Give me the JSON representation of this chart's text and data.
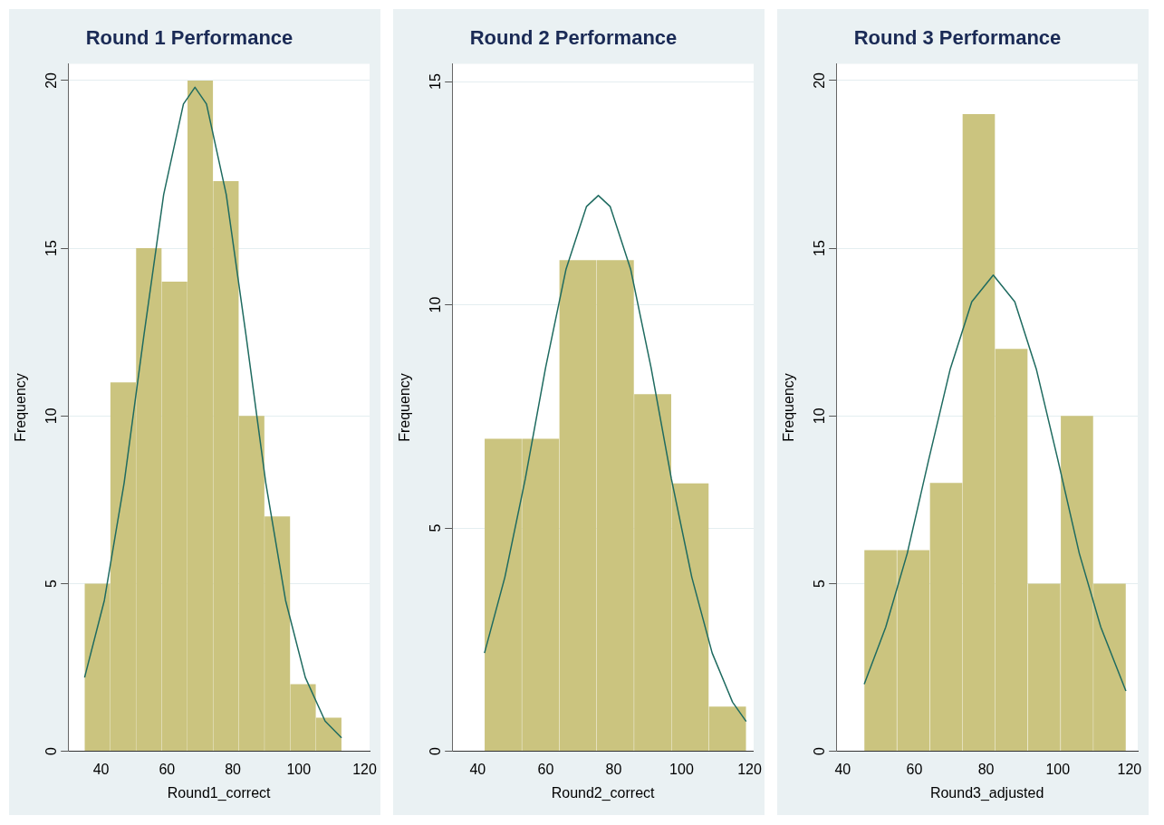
{
  "chart_data": [
    {
      "type": "histogram",
      "title": "Round 1 Performance",
      "xlabel": "Round1_correct",
      "ylabel": "Frequency",
      "bins": [
        35,
        42.8,
        50.6,
        58.4,
        66.2,
        74,
        81.8,
        89.6,
        97.4,
        105.2,
        113
      ],
      "values": [
        5,
        11,
        15,
        14,
        20,
        17,
        10,
        7,
        2,
        1
      ],
      "color": "#cbc47f",
      "series": [
        {
          "type": "line",
          "color": "#1f6b60",
          "x": [
            35,
            41,
            47,
            53,
            59,
            65,
            68.5,
            72,
            78,
            84,
            90,
            96,
            102,
            108,
            113
          ],
          "values": [
            2.2,
            4.5,
            8.0,
            12.4,
            16.6,
            19.3,
            19.8,
            19.3,
            16.6,
            12.4,
            8.0,
            4.5,
            2.2,
            0.9,
            0.4
          ]
        }
      ],
      "xlim": [
        30,
        121.5
      ],
      "xticks": [
        40,
        60,
        80,
        100,
        120
      ],
      "ylim": [
        0,
        20.5
      ],
      "yticks": [
        0,
        5,
        10,
        15,
        20
      ],
      "grid": "y"
    },
    {
      "type": "histogram",
      "title": "Round 2 Performance",
      "xlabel": "Round2_correct",
      "ylabel": "Frequency",
      "bins": [
        42,
        53,
        64,
        75,
        86,
        97,
        108,
        119
      ],
      "values": [
        7,
        7,
        11,
        11,
        8,
        6,
        1
      ],
      "color": "#cbc47f",
      "series": [
        {
          "type": "line",
          "color": "#1f6b60",
          "x": [
            42,
            48,
            54,
            60,
            66,
            72,
            75.5,
            79,
            85,
            91,
            97,
            103,
            109,
            115,
            119
          ],
          "values": [
            2.2,
            3.9,
            6.1,
            8.6,
            10.8,
            12.2,
            12.45,
            12.2,
            10.8,
            8.6,
            6.1,
            3.9,
            2.2,
            1.1,
            0.67
          ]
        }
      ],
      "xlim": [
        32.5,
        121.2
      ],
      "xticks": [
        40,
        60,
        80,
        100,
        120
      ],
      "ylim": [
        0,
        15.4
      ],
      "yticks": [
        0,
        5,
        10,
        15
      ],
      "grid": "y"
    },
    {
      "type": "histogram",
      "title": "Round 3 Performance",
      "xlabel": "Round3_adjusted",
      "ylabel": "Frequency",
      "bins": [
        46,
        55.1,
        64.3,
        73.4,
        82.5,
        91.6,
        100.8,
        109.9,
        119
      ],
      "values": [
        6,
        6,
        8,
        19,
        12,
        5,
        10,
        5
      ],
      "color": "#cbc47f",
      "series": [
        {
          "type": "line",
          "color": "#1f6b60",
          "x": [
            46,
            52,
            58,
            64,
            70,
            76,
            82,
            88,
            94,
            100,
            106,
            112,
            119
          ],
          "values": [
            2.0,
            3.7,
            5.9,
            8.7,
            11.4,
            13.4,
            14.2,
            13.4,
            11.4,
            8.7,
            5.9,
            3.7,
            1.8
          ]
        }
      ],
      "xlim": [
        38.2,
        122.3
      ],
      "xticks": [
        40,
        60,
        80,
        100,
        120
      ],
      "ylim": [
        0,
        20.5
      ],
      "yticks": [
        0,
        5,
        10,
        15,
        20
      ],
      "grid": "y"
    }
  ]
}
